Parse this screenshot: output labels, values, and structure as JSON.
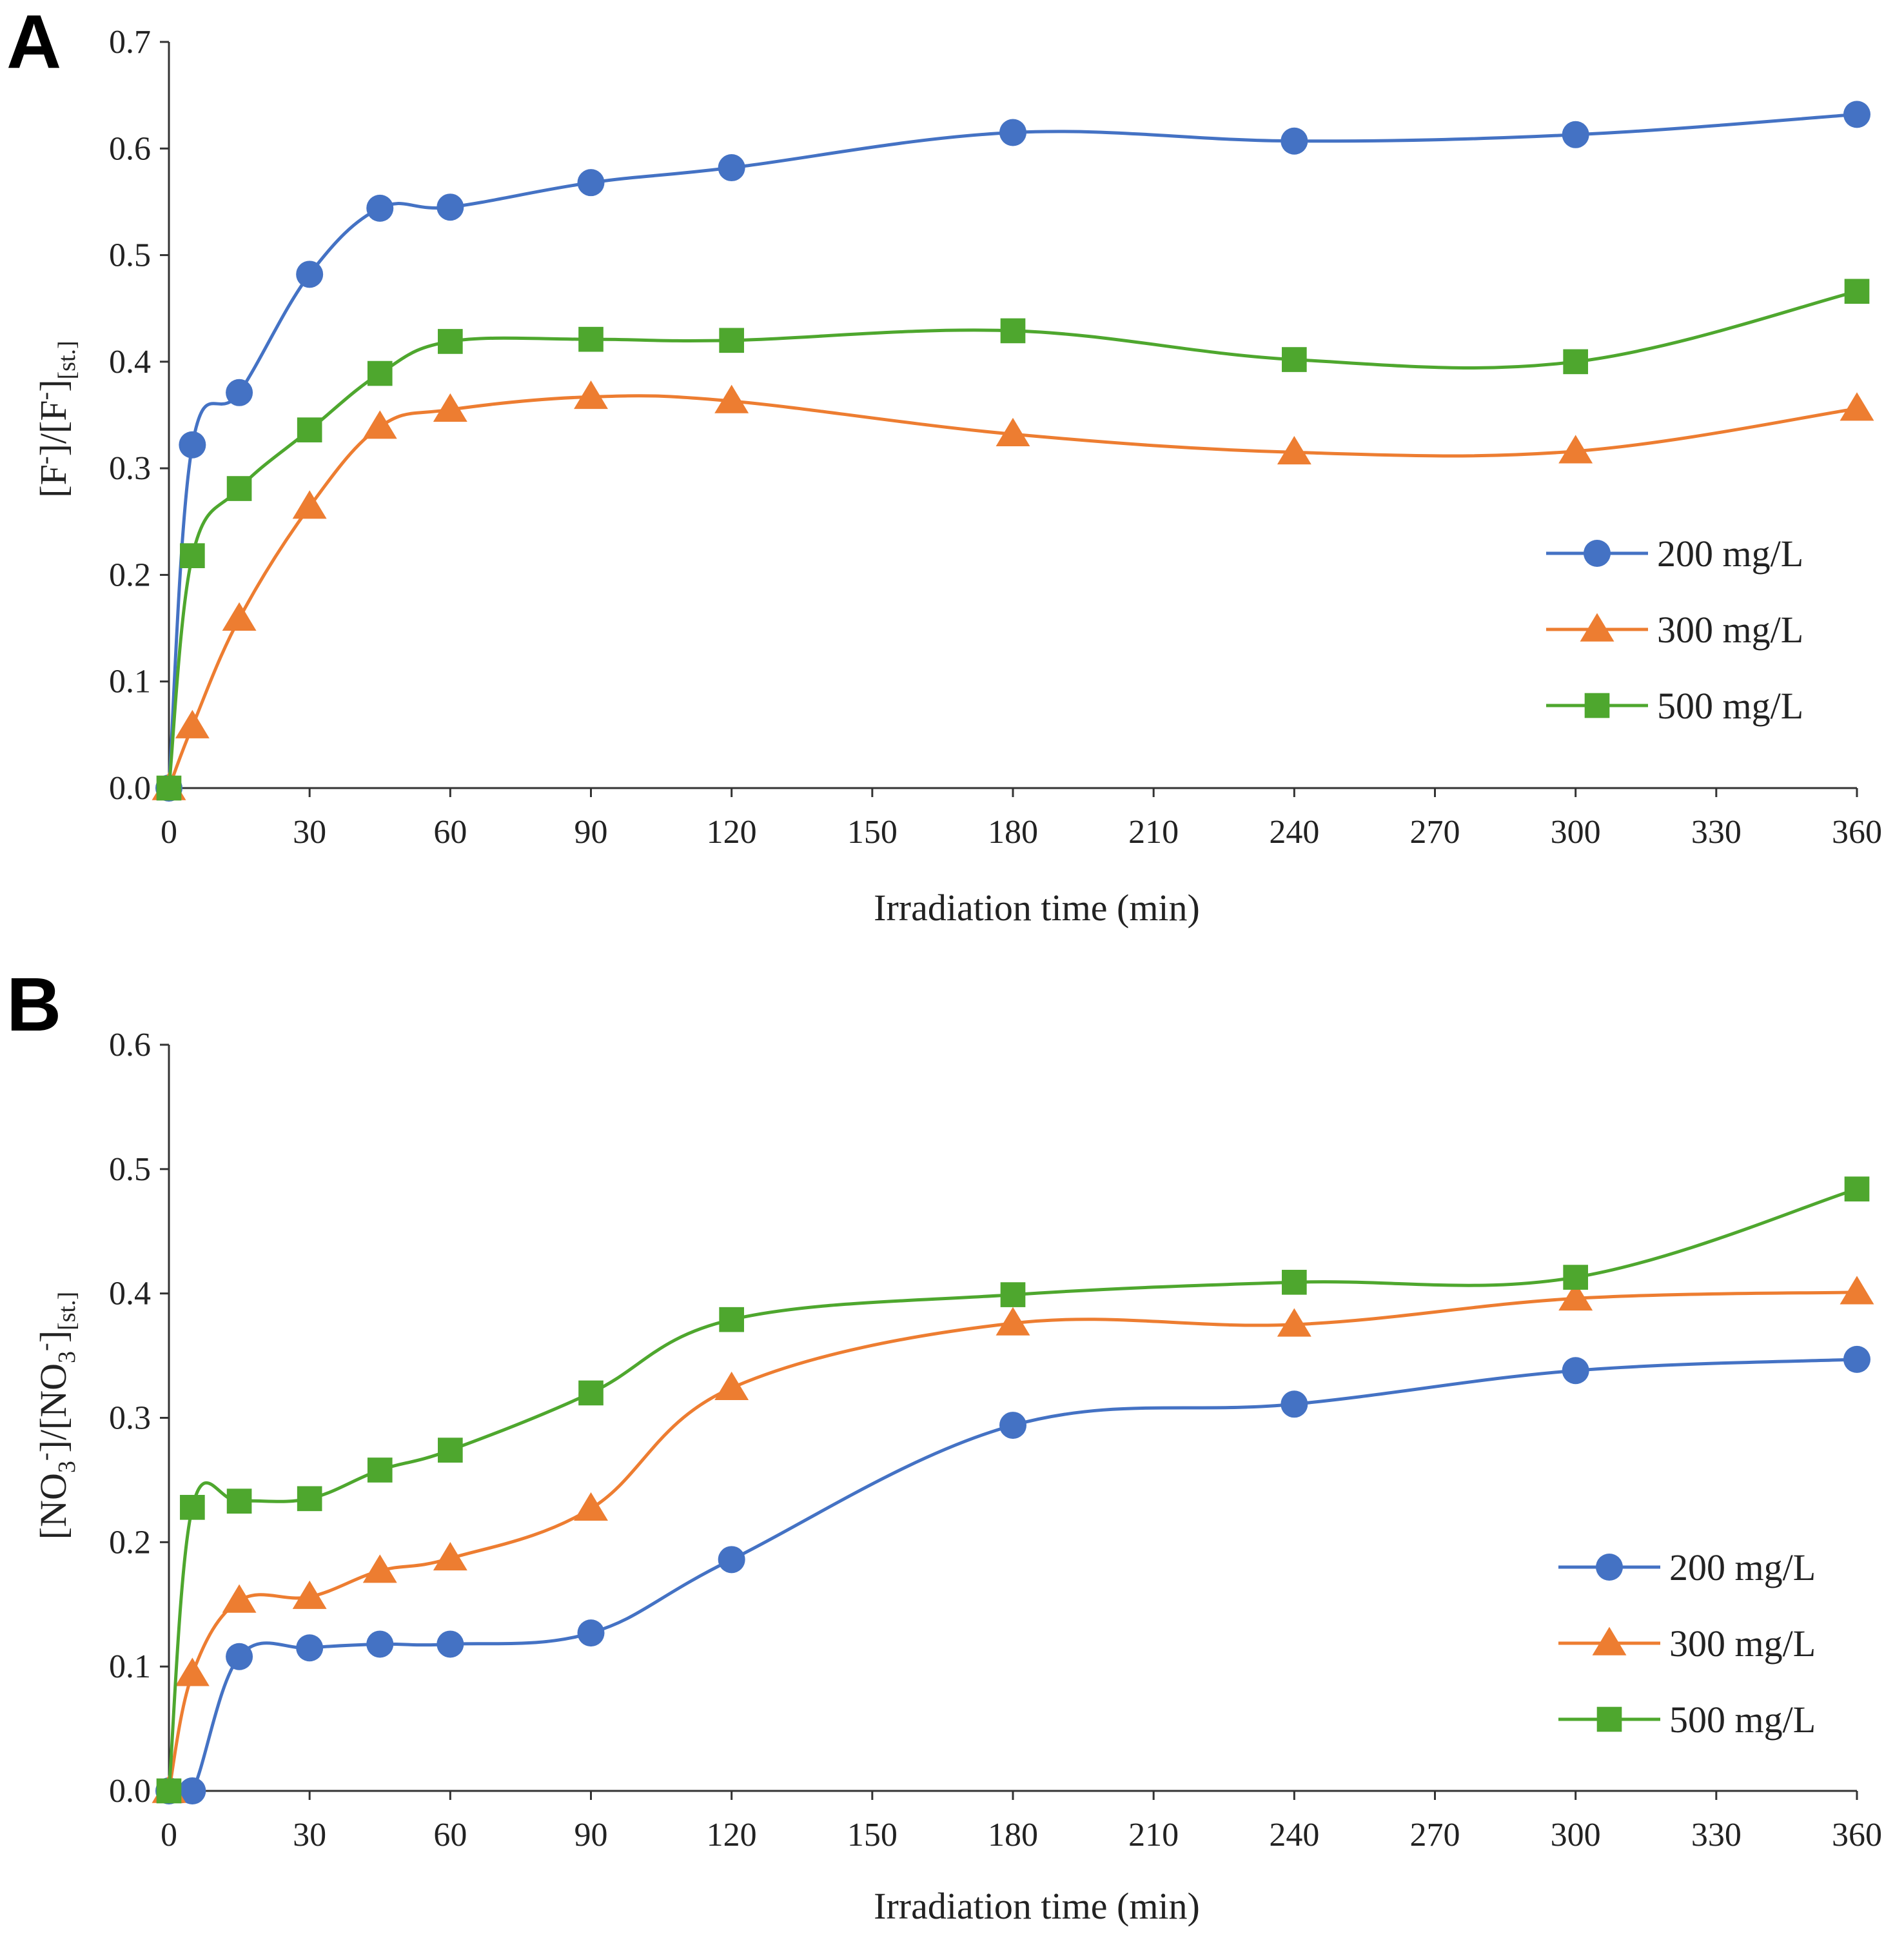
{
  "chart_data": [
    {
      "panel": "A",
      "type": "line",
      "x_ticks": [
        "0",
        "30",
        "60",
        "90",
        "120",
        "150",
        "180",
        "210",
        "240",
        "270",
        "300",
        "330",
        "360"
      ],
      "y_ticks": [
        "0.0",
        "0.1",
        "0.2",
        "0.3",
        "0.4",
        "0.5",
        "0.6",
        "0.7"
      ],
      "xlim": [
        0,
        360
      ],
      "ylim": [
        0,
        0.7
      ],
      "xlabel": "Irradiation time (min)",
      "ylabel": {
        "t1": "[F",
        "t2": "-",
        "t3": "]/[F",
        "t4": "-",
        "t5": "]",
        "t6": "[st.]"
      },
      "legend_position": "right",
      "grid": false,
      "series": [
        {
          "name": "200 mg/L",
          "color": "#4472C4",
          "marker": "circle",
          "x": [
            0,
            5,
            15,
            30,
            45,
            60,
            90,
            120,
            180,
            240,
            300,
            360
          ],
          "y": [
            0.0,
            0.322,
            0.371,
            0.482,
            0.544,
            0.545,
            0.568,
            0.582,
            0.615,
            0.607,
            0.613,
            0.632
          ]
        },
        {
          "name": "300 mg/L",
          "color": "#ED7D31",
          "marker": "triangle",
          "x": [
            0,
            5,
            15,
            30,
            45,
            60,
            90,
            120,
            180,
            240,
            300,
            360
          ],
          "y": [
            0.0,
            0.058,
            0.159,
            0.264,
            0.339,
            0.355,
            0.367,
            0.363,
            0.332,
            0.315,
            0.316,
            0.356
          ]
        },
        {
          "name": "500 mg/L",
          "color": "#4EA72E",
          "marker": "square",
          "x": [
            0,
            5,
            15,
            30,
            45,
            60,
            90,
            120,
            180,
            240,
            300,
            360
          ],
          "y": [
            0.0,
            0.218,
            0.281,
            0.336,
            0.389,
            0.419,
            0.421,
            0.42,
            0.429,
            0.402,
            0.4,
            0.466
          ]
        }
      ]
    },
    {
      "panel": "B",
      "type": "line",
      "x_ticks": [
        "0",
        "30",
        "60",
        "90",
        "120",
        "150",
        "180",
        "210",
        "240",
        "270",
        "300",
        "330",
        "360"
      ],
      "y_ticks": [
        "0.0",
        "0.1",
        "0.2",
        "0.3",
        "0.4",
        "0.5",
        "0.6"
      ],
      "xlim": [
        0,
        360
      ],
      "ylim": [
        0,
        0.6
      ],
      "xlabel": "Irradiation time (min)",
      "ylabel": {
        "t1": "[NO",
        "t2": "3",
        "t3": "-",
        "t4": "]/[NO",
        "t5": "3",
        "t6": "-",
        "t7": "]",
        "t8": "[st.]"
      },
      "legend_position": "right",
      "grid": false,
      "series": [
        {
          "name": "200 mg/L",
          "color": "#4472C4",
          "marker": "circle",
          "x": [
            0,
            5,
            15,
            30,
            45,
            60,
            90,
            120,
            180,
            240,
            300,
            360
          ],
          "y": [
            0.0,
            0.0,
            0.108,
            0.115,
            0.118,
            0.118,
            0.127,
            0.186,
            0.294,
            0.311,
            0.338,
            0.347
          ]
        },
        {
          "name": "300 mg/L",
          "color": "#ED7D31",
          "marker": "triangle",
          "x": [
            0,
            5,
            15,
            30,
            45,
            60,
            90,
            120,
            180,
            240,
            300,
            360
          ],
          "y": [
            0.0,
            0.094,
            0.153,
            0.156,
            0.177,
            0.187,
            0.227,
            0.324,
            0.376,
            0.375,
            0.396,
            0.401
          ]
        },
        {
          "name": "500 mg/L",
          "color": "#4EA72E",
          "marker": "square",
          "x": [
            0,
            5,
            15,
            30,
            45,
            60,
            90,
            120,
            180,
            240,
            300,
            360
          ],
          "y": [
            0.0,
            0.228,
            0.233,
            0.235,
            0.258,
            0.274,
            0.32,
            0.379,
            0.399,
            0.409,
            0.413,
            0.484
          ]
        }
      ]
    }
  ]
}
